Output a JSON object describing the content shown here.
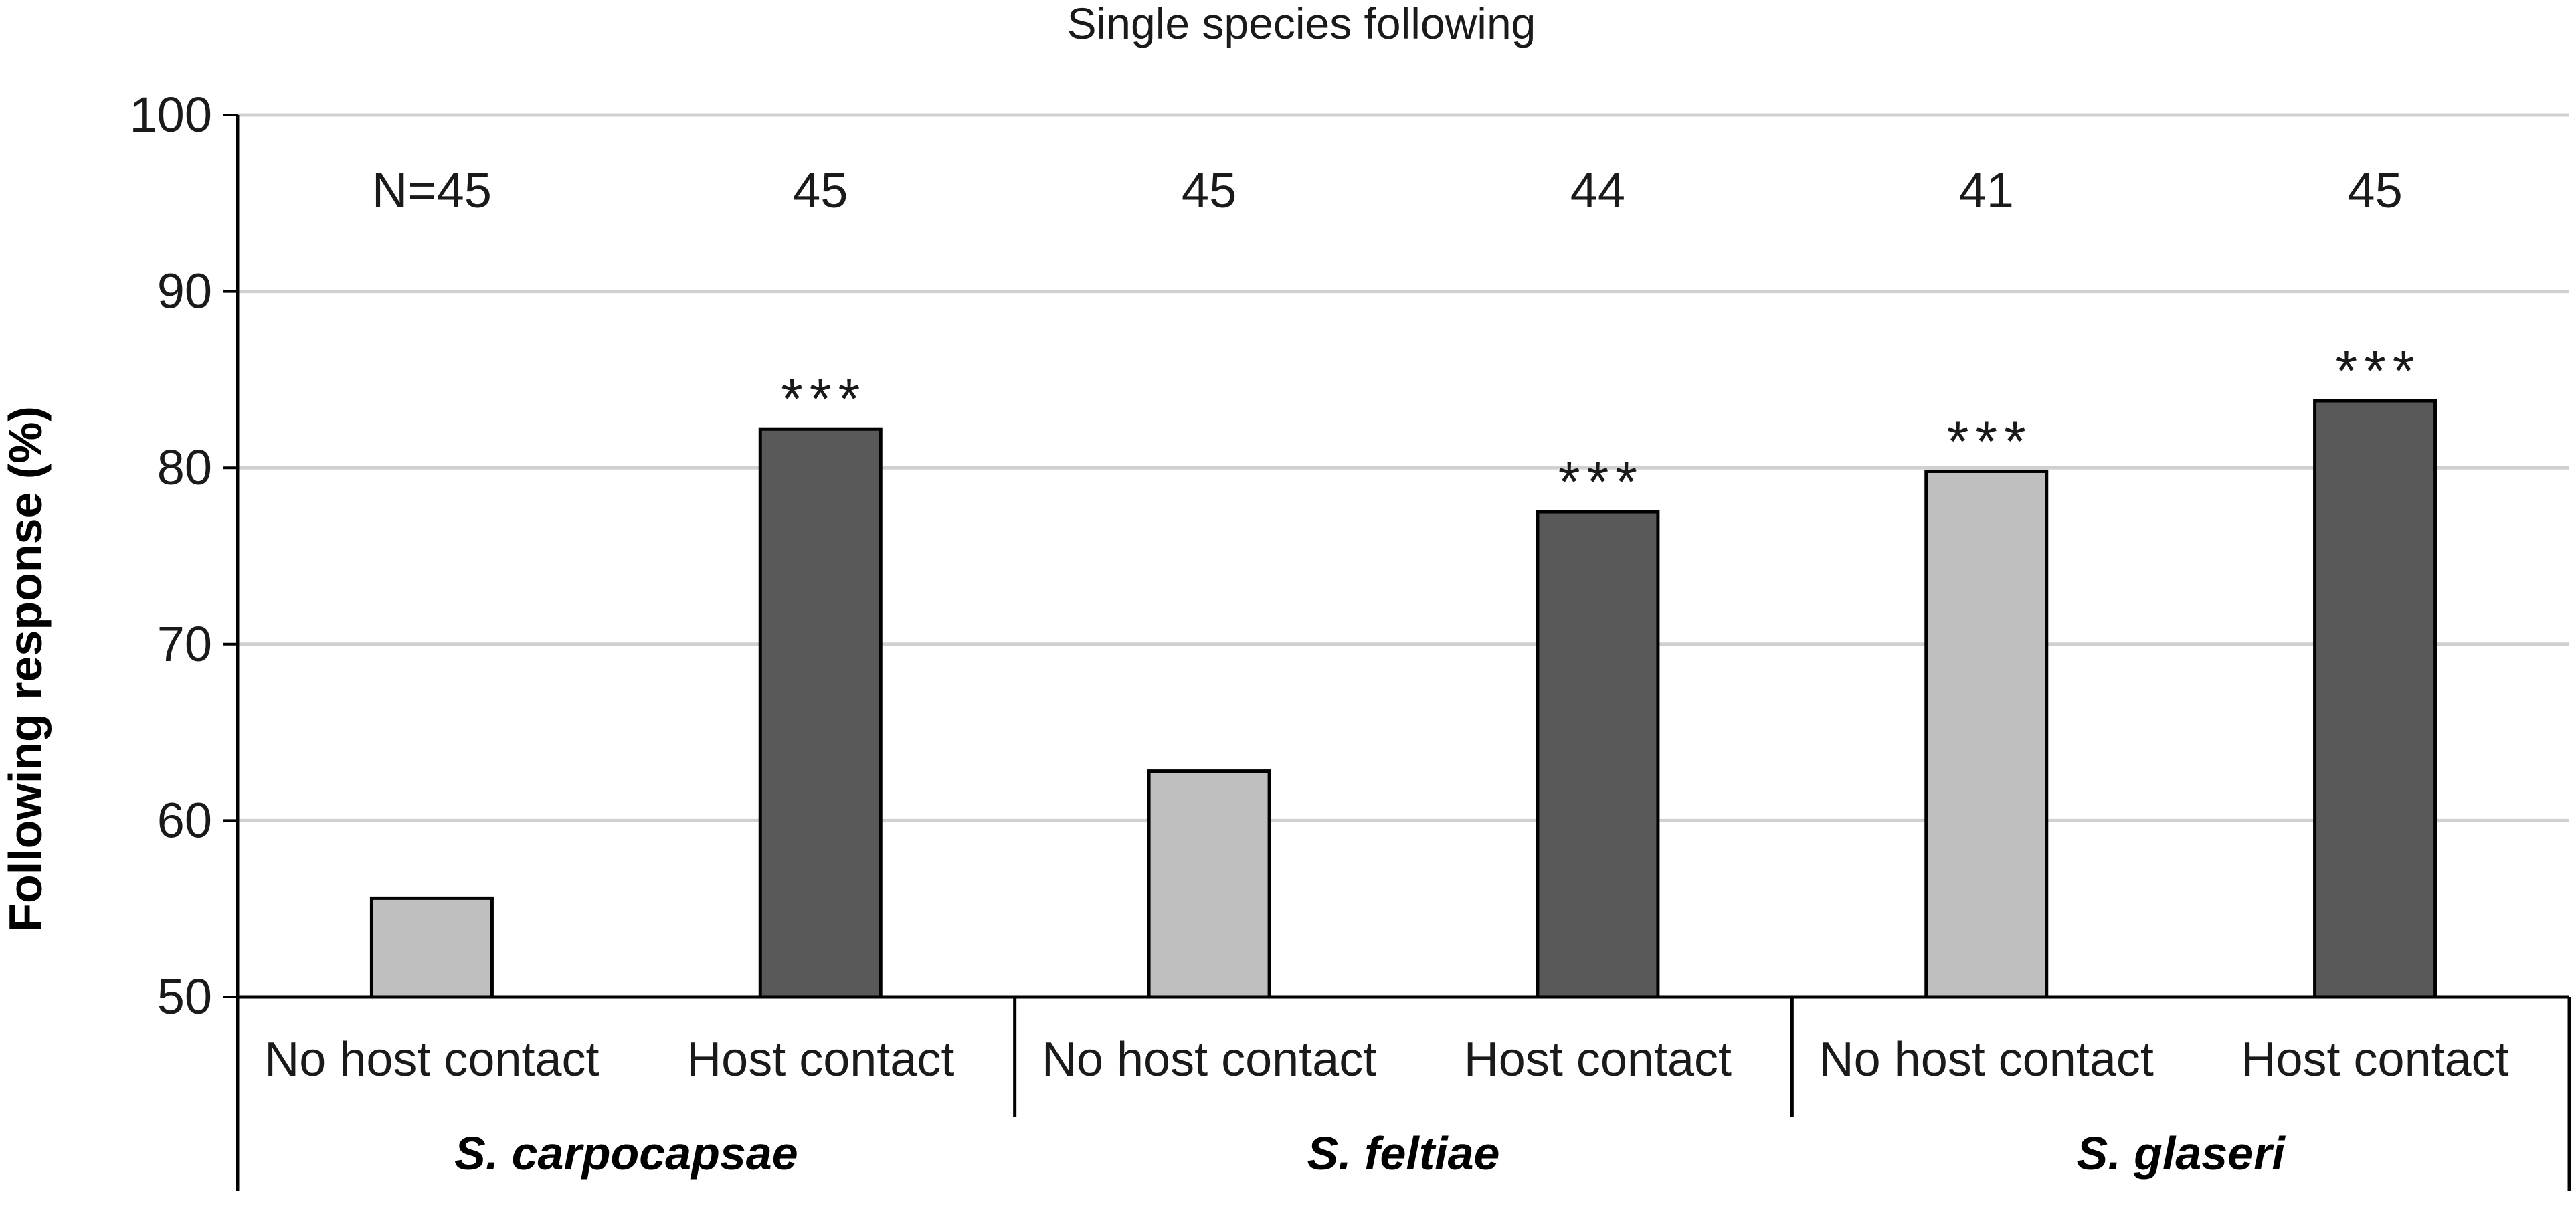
{
  "chart_data": {
    "type": "bar",
    "title": "Single species following",
    "ylabel": "Following response (%)",
    "xlabel": "",
    "ylim": [
      50,
      100
    ],
    "yticks": [
      "50",
      "60",
      "70",
      "80",
      "90",
      "100"
    ],
    "grid": true,
    "groups": [
      "S. carpocapsae",
      "S. feltiae",
      "S. glaseri"
    ],
    "categories": [
      "No host contact",
      "Host contact",
      "No host contact",
      "Host contact",
      "No host contact",
      "Host contact"
    ],
    "values": [
      55.6,
      82.2,
      62.8,
      77.5,
      79.8,
      83.8
    ],
    "n_labels": [
      "N=45",
      "45",
      "45",
      "44",
      "41",
      "45"
    ],
    "significance": [
      "",
      "***",
      "",
      "***",
      "***",
      "***"
    ],
    "series_colors": {
      "No host contact": "#bfbfbf",
      "Host contact": "#595959"
    }
  }
}
